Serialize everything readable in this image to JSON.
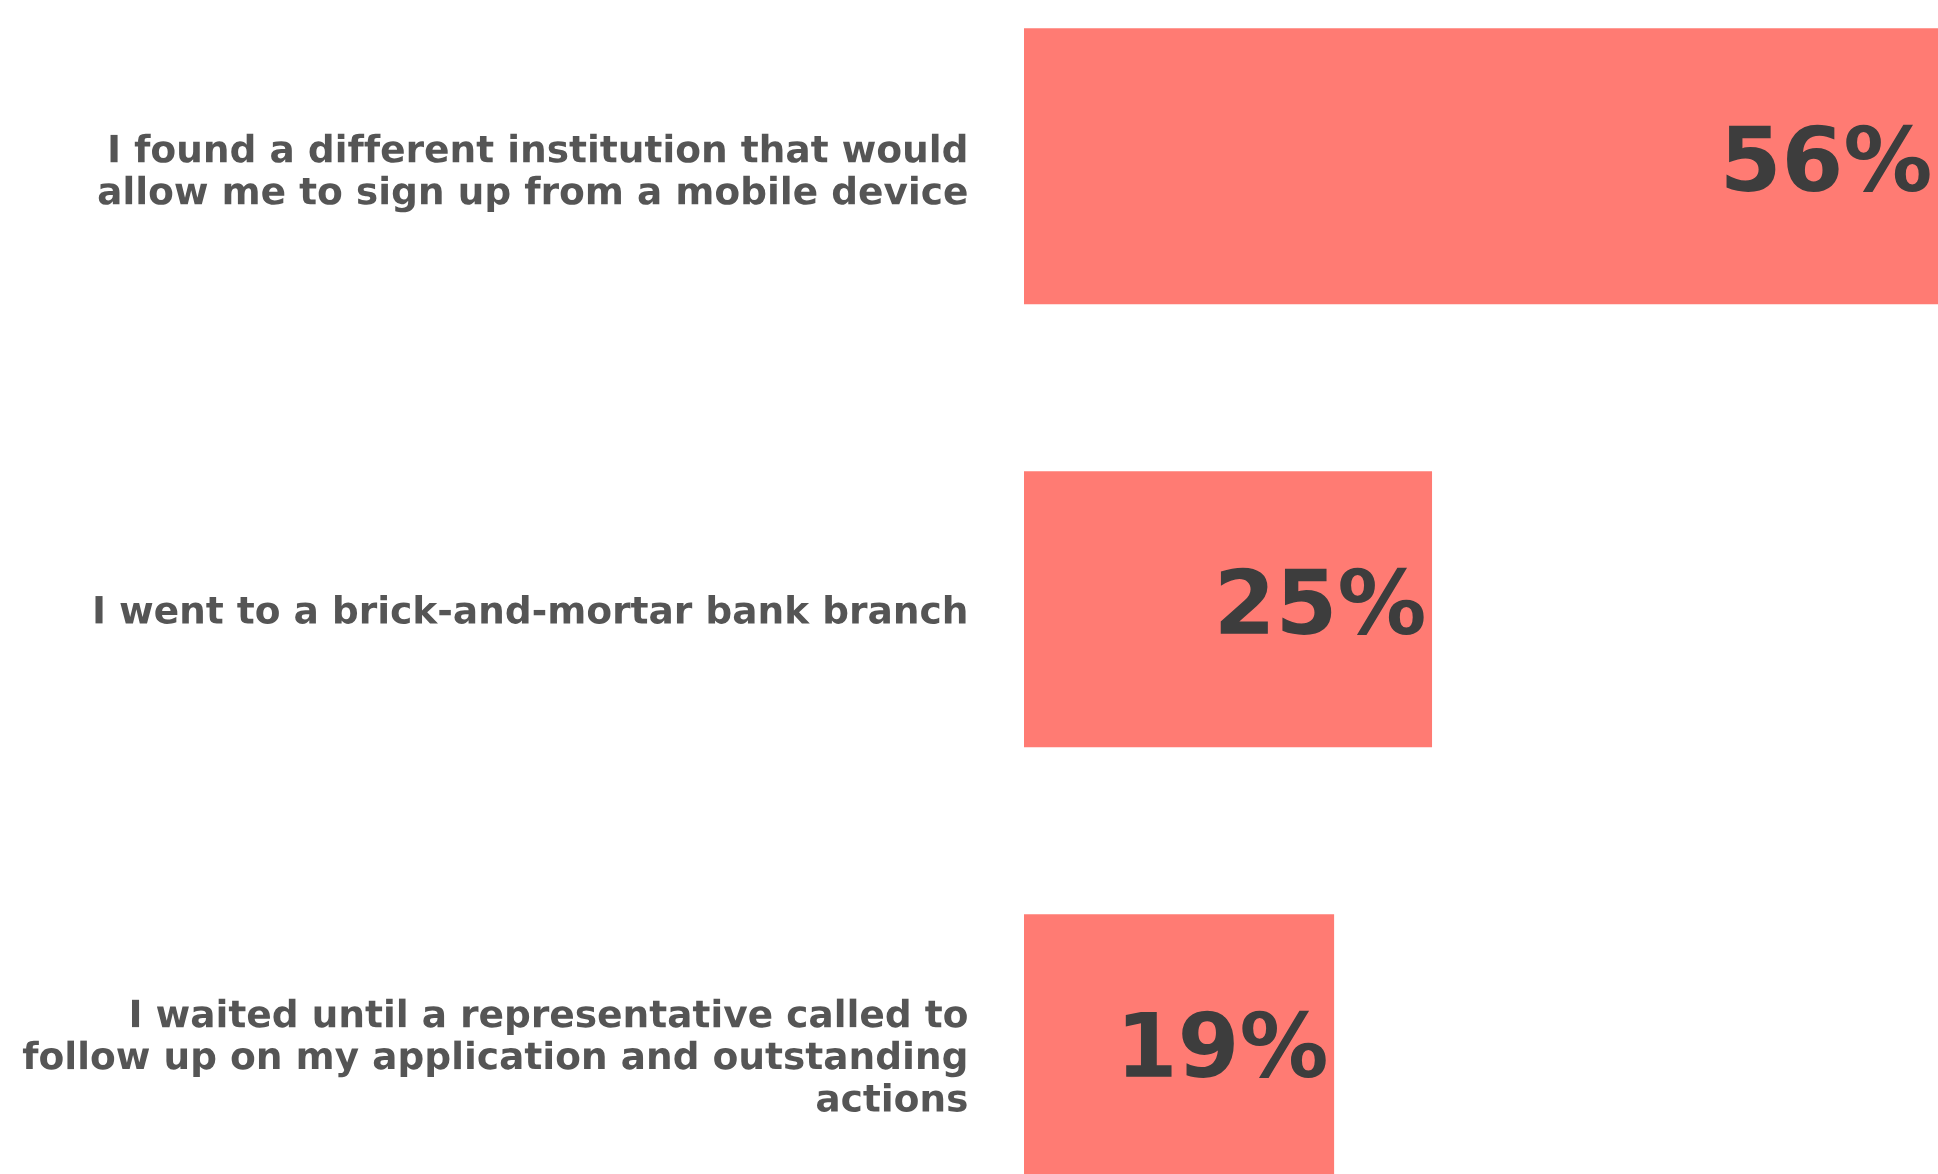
{
  "chart_data": {
    "type": "bar",
    "orientation": "horizontal",
    "categories": [
      "I found a different institution that would\nallow me to sign up from a mobile device",
      "I went to a brick-and-mortar bank branch",
      "I waited until a representative called to\nfollow up on my application and outstanding\nactions"
    ],
    "values": [
      56,
      25,
      19
    ],
    "color": "#ff7b73",
    "value_labels": [
      "56%",
      "25%",
      "19%"
    ],
    "tick_labels": "y",
    "grid": false,
    "legend": false
  }
}
